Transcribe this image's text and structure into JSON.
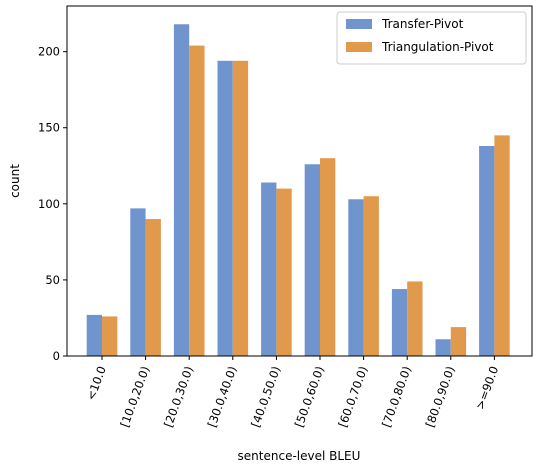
{
  "chart_data": {
    "type": "bar",
    "xlabel": "sentence-level BLEU",
    "ylabel": "count",
    "categories": [
      "<10.0",
      "[10.0,20.0)",
      "[20.0,30.0)",
      "[30.0,40.0)",
      "[40.0,50.0)",
      "[50.0,60.0)",
      "[60.0,70.0)",
      "[70.0,80.0)",
      "[80.0,90.0)",
      ">=90.0"
    ],
    "series": [
      {
        "name": "Transfer-Pivot",
        "color": "#7094cd",
        "values": [
          27,
          97,
          218,
          194,
          114,
          126,
          103,
          44,
          11,
          138
        ]
      },
      {
        "name": "Triangulation-Pivot",
        "color": "#e1994c",
        "values": [
          26,
          90,
          204,
          194,
          110,
          130,
          105,
          49,
          19,
          145
        ]
      }
    ],
    "ylim": [
      0,
      230
    ],
    "yticks": [
      0,
      50,
      100,
      150,
      200
    ],
    "grid": false,
    "legend_position": "top-right"
  }
}
